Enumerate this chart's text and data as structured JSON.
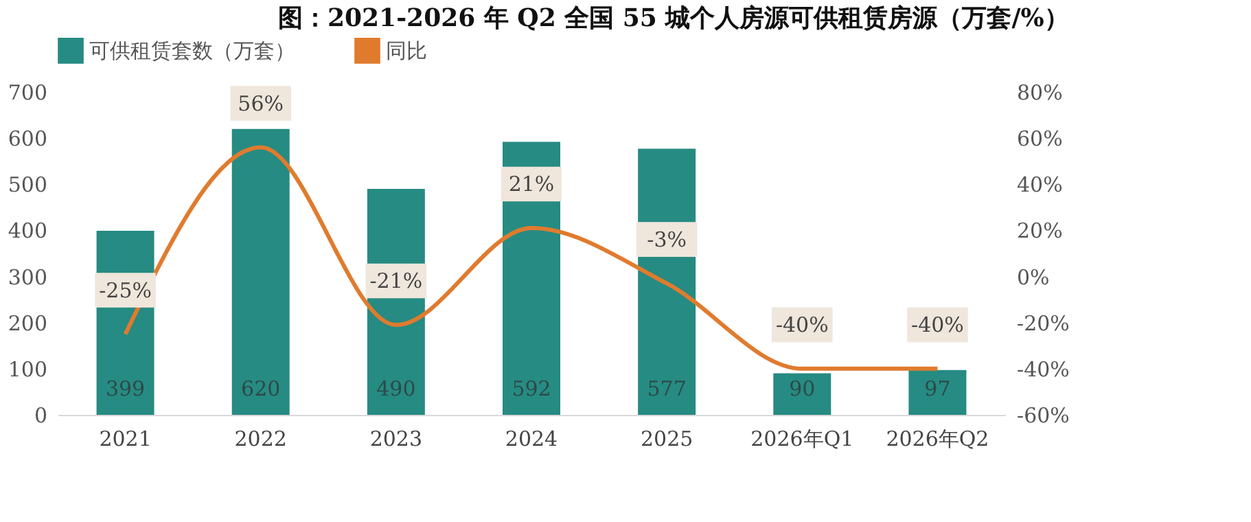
{
  "chart_data": {
    "type": "bar",
    "title": "图：2021-2026 年 Q2 全国 55 城个人房源可供租赁房源（万套/%）",
    "categories": [
      "2021",
      "2022",
      "2023",
      "2024",
      "2025",
      "2026年Q1",
      "2026年Q2"
    ],
    "series": [
      {
        "name": "可供租赁套数（万套）",
        "color": "#268b82",
        "values": [
          399,
          620,
          490,
          592,
          577,
          90,
          97
        ]
      },
      {
        "name": "同比",
        "type": "line",
        "axis": "y2",
        "color": "#e07b2e",
        "values": [
          -25,
          56,
          -21,
          21,
          -3,
          -40,
          -40
        ],
        "value_labels": [
          "-25%",
          "56%",
          "-21%",
          "21%",
          "-3%",
          "-40%",
          "-40%"
        ]
      }
    ],
    "ylim": [
      0,
      700
    ],
    "yticks": [
      0,
      100,
      200,
      300,
      400,
      500,
      600,
      700
    ],
    "y2lim": [
      -60,
      80
    ],
    "y2ticks": [
      {
        "value": -60,
        "label": "-60%"
      },
      {
        "value": -40,
        "label": "-40%"
      },
      {
        "value": -20,
        "label": "-20%"
      },
      {
        "value": 0,
        "label": "0%"
      },
      {
        "value": 20,
        "label": "20%"
      },
      {
        "value": 40,
        "label": "40%"
      },
      {
        "value": 60,
        "label": "60%"
      },
      {
        "value": 80,
        "label": "80%"
      }
    ],
    "data_labels": true,
    "grid": false,
    "legend": "top",
    "marker": "none",
    "line_style": "solid"
  }
}
